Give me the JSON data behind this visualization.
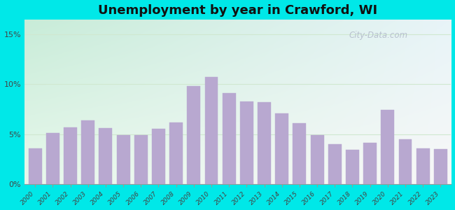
{
  "title": "Unemployment by year in Crawford, WI",
  "years": [
    2000,
    2001,
    2002,
    2003,
    2004,
    2005,
    2006,
    2007,
    2008,
    2009,
    2010,
    2011,
    2012,
    2013,
    2014,
    2015,
    2016,
    2017,
    2018,
    2019,
    2020,
    2021,
    2022,
    2023
  ],
  "values": [
    3.6,
    5.1,
    5.7,
    6.4,
    5.6,
    4.9,
    4.9,
    5.5,
    6.2,
    9.8,
    10.7,
    9.1,
    8.3,
    8.2,
    7.1,
    6.1,
    4.9,
    4.0,
    3.4,
    4.1,
    7.4,
    4.5,
    3.6,
    3.5
  ],
  "bar_color": "#b8a8d0",
  "yticks": [
    0,
    5,
    10,
    15
  ],
  "ytick_labels": [
    "0%",
    "5%",
    "10%",
    "15%"
  ],
  "ylim": [
    0,
    16.5
  ],
  "bg_outer": "#00e8e8",
  "bg_top_color": "#c8ecd8",
  "bg_bottom_color": "#f0f8f0",
  "grid_color": "#d0e8d0",
  "title_fontsize": 13,
  "watermark": "City-Data.com",
  "watermark_color": "#b0b8c8"
}
